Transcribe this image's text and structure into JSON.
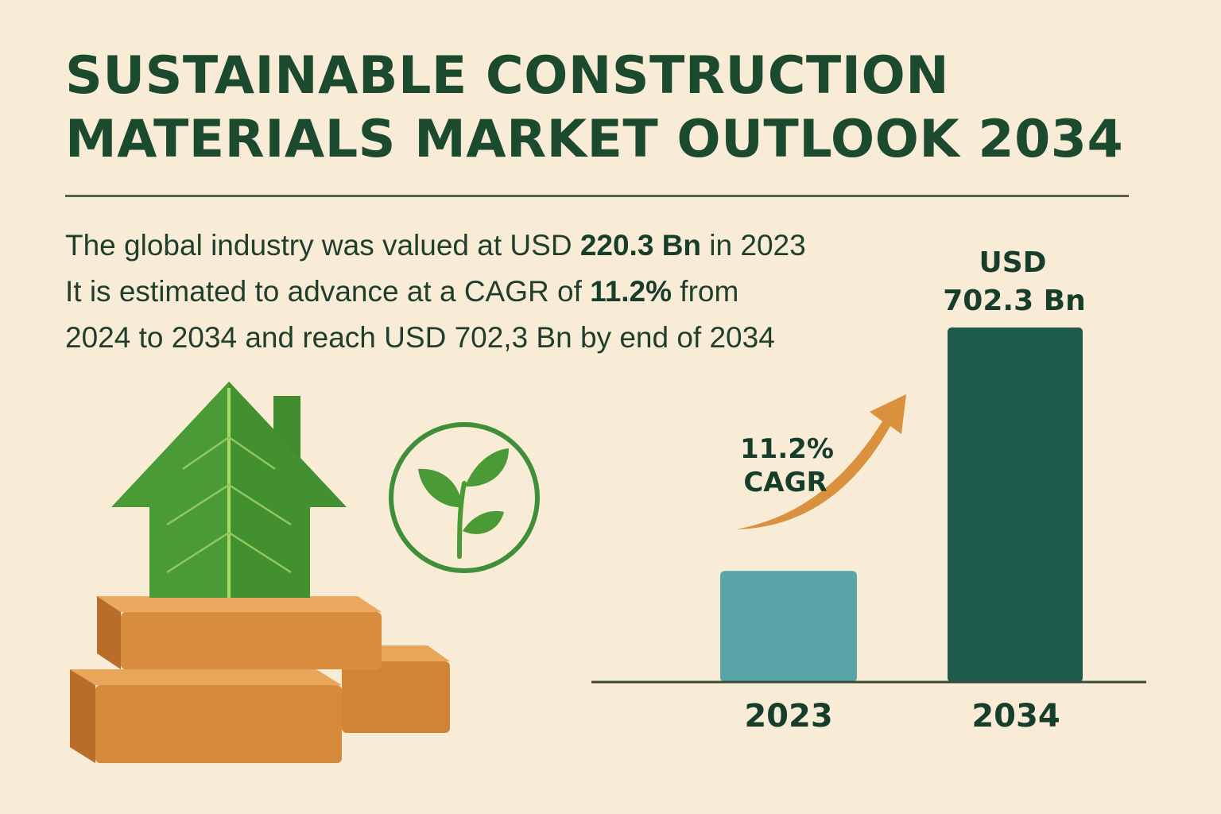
{
  "title": {
    "line1": "SUSTAINABLE CONSTRUCTION",
    "line2": "MATERIALS MARKET OUTLOOK 2034"
  },
  "intro": {
    "l1_pre": "The global industry was valued at USD ",
    "l1_bold": "220.3 Bn",
    "l1_post": " in 2023",
    "l2_pre": "It is estimated to advance at a CAGR of ",
    "l2_bold": "11.2%",
    "l2_post": " from",
    "l3": "2024 to 2034 and reach USD 702,3 Bn by end of 2034"
  },
  "icons": {
    "illustration": "leaf-house-on-bricks-icon",
    "badge": "plant-sprout-icon"
  },
  "colors": {
    "background": "#f9ecd6",
    "title": "#1b4a2e",
    "bar_2023": "#5aa5aa",
    "bar_2034": "#1f5b4d",
    "arrow": "#d9913e",
    "leaf": "#4a9a35",
    "brick": "#d68a3c"
  },
  "chart_data": {
    "type": "bar",
    "categories": [
      "2023",
      "2034"
    ],
    "values": [
      220.3,
      702.3
    ],
    "unit": "USD Bn",
    "value_label_2034_line1": "USD",
    "value_label_2034_line2": "702.3 Bn",
    "annotation_line1": "11.2%",
    "annotation_line2": "CAGR",
    "ylim": [
      0,
      702.3
    ]
  }
}
